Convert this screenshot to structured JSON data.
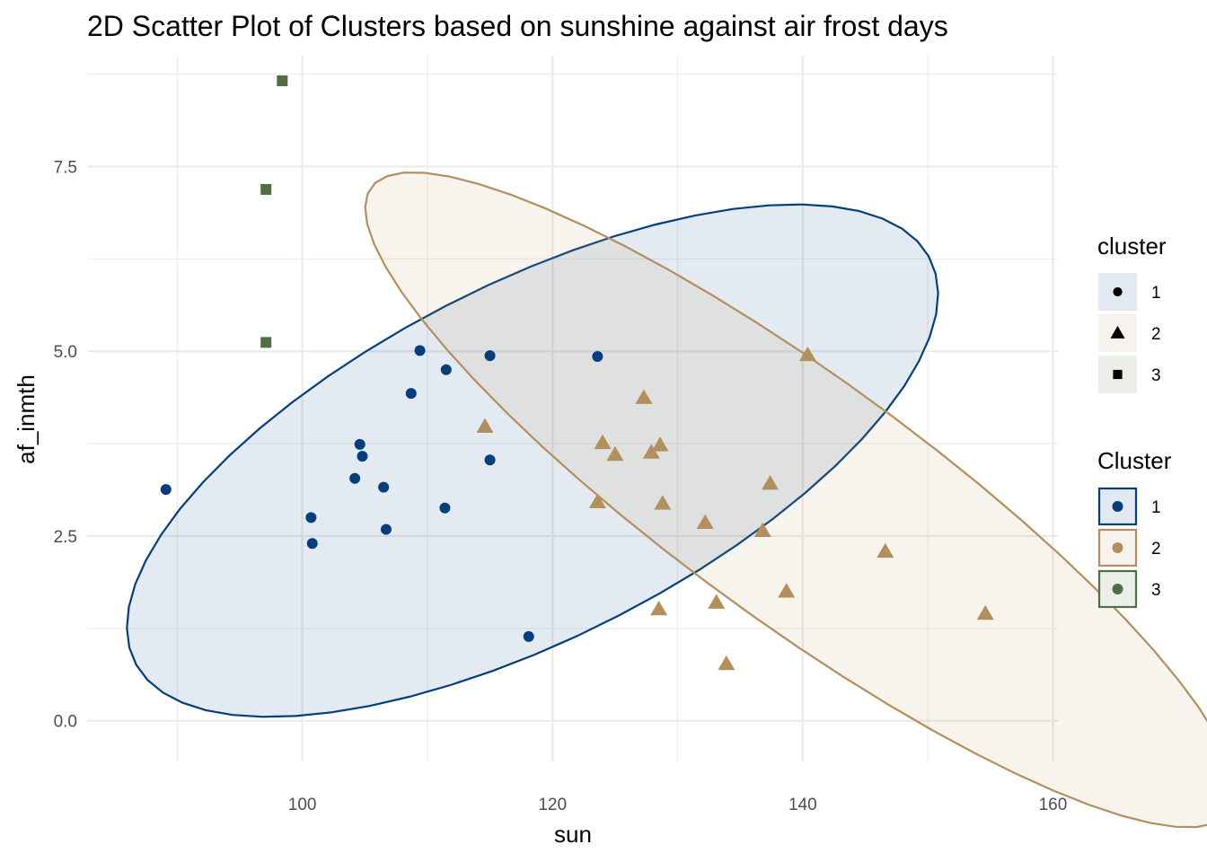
{
  "chart_data": {
    "type": "scatter",
    "title": "2D Scatter Plot of Clusters based on sunshine against air frost days",
    "xlabel": "sun",
    "ylabel": "af_inmth",
    "xlim": [
      82.8,
      160.4
    ],
    "ylim": [
      -0.55,
      9.0
    ],
    "x_ticks": [
      100,
      120,
      140,
      160
    ],
    "x_tick_labels": [
      "100",
      "120",
      "140",
      "160"
    ],
    "y_ticks": [
      0.0,
      2.5,
      5.0,
      7.5
    ],
    "y_tick_labels": [
      "0.0",
      "2.5",
      "5.0",
      "7.5"
    ],
    "grid": true,
    "legend_position": "right",
    "colors": {
      "1": "#053E7D",
      "2": "#B28F5C",
      "3": "#4F6E44"
    },
    "shapes": {
      "1": "circle",
      "2": "triangle",
      "3": "square"
    },
    "series": [
      {
        "name": "1",
        "points": [
          [
            89.1,
            3.13
          ],
          [
            100.7,
            2.75
          ],
          [
            100.8,
            2.4
          ],
          [
            104.2,
            3.28
          ],
          [
            104.6,
            3.74
          ],
          [
            104.8,
            3.58
          ],
          [
            106.5,
            3.16
          ],
          [
            106.7,
            2.59
          ],
          [
            108.7,
            4.43
          ],
          [
            109.4,
            5.01
          ],
          [
            111.5,
            4.75
          ],
          [
            111.4,
            2.88
          ],
          [
            115.0,
            4.94
          ],
          [
            115.0,
            3.53
          ],
          [
            118.1,
            1.14
          ],
          [
            123.6,
            4.93
          ]
        ]
      },
      {
        "name": "2",
        "points": [
          [
            114.6,
            3.98
          ],
          [
            123.6,
            2.96
          ],
          [
            124.0,
            3.76
          ],
          [
            125.0,
            3.6
          ],
          [
            127.3,
            4.37
          ],
          [
            127.9,
            3.63
          ],
          [
            128.6,
            3.73
          ],
          [
            128.8,
            2.94
          ],
          [
            128.5,
            1.51
          ],
          [
            132.2,
            2.68
          ],
          [
            133.1,
            1.6
          ],
          [
            133.9,
            0.77
          ],
          [
            136.8,
            2.57
          ],
          [
            137.4,
            3.21
          ],
          [
            138.7,
            1.75
          ],
          [
            140.4,
            4.95
          ],
          [
            146.6,
            2.29
          ],
          [
            154.6,
            1.45
          ]
        ]
      },
      {
        "name": "3",
        "points": [
          [
            97.1,
            5.12
          ],
          [
            97.1,
            7.19
          ],
          [
            98.4,
            8.66
          ]
        ]
      }
    ],
    "ellipses": [
      {
        "cluster": "1",
        "center": [
          118.4,
          3.52
        ],
        "semi_axes": [
          32.5,
          2.63
        ],
        "angle_deg": 4.0
      },
      {
        "cluster": "2",
        "center": [
          139.8,
          2.99
        ],
        "semi_axes": [
          35.0,
          2.0
        ],
        "angle_deg": -6.5
      }
    ],
    "legends": [
      {
        "title": "cluster",
        "entries": [
          "1",
          "2",
          "3"
        ],
        "kind": "shape"
      },
      {
        "title": "Cluster",
        "entries": [
          "1",
          "2",
          "3"
        ],
        "kind": "fill"
      }
    ]
  }
}
